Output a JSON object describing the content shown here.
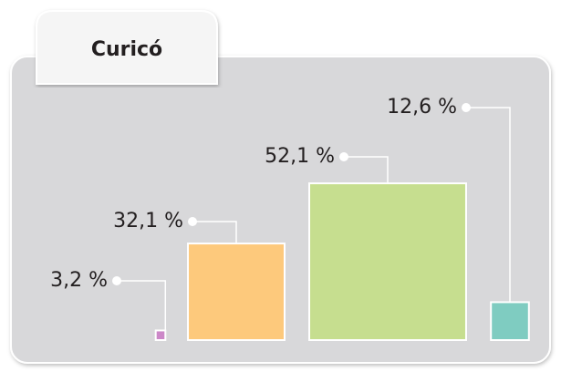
{
  "chart_data": {
    "type": "square",
    "title": "Curicó",
    "values": [
      3.2,
      32.1,
      52.1,
      12.6
    ],
    "value_labels": [
      "3,2 %",
      "32,1 %",
      "52,1 %",
      "12,6 %"
    ],
    "colors": [
      "#cc88c8",
      "#fdc97c",
      "#c6de8f",
      "#7fccc1"
    ]
  }
}
